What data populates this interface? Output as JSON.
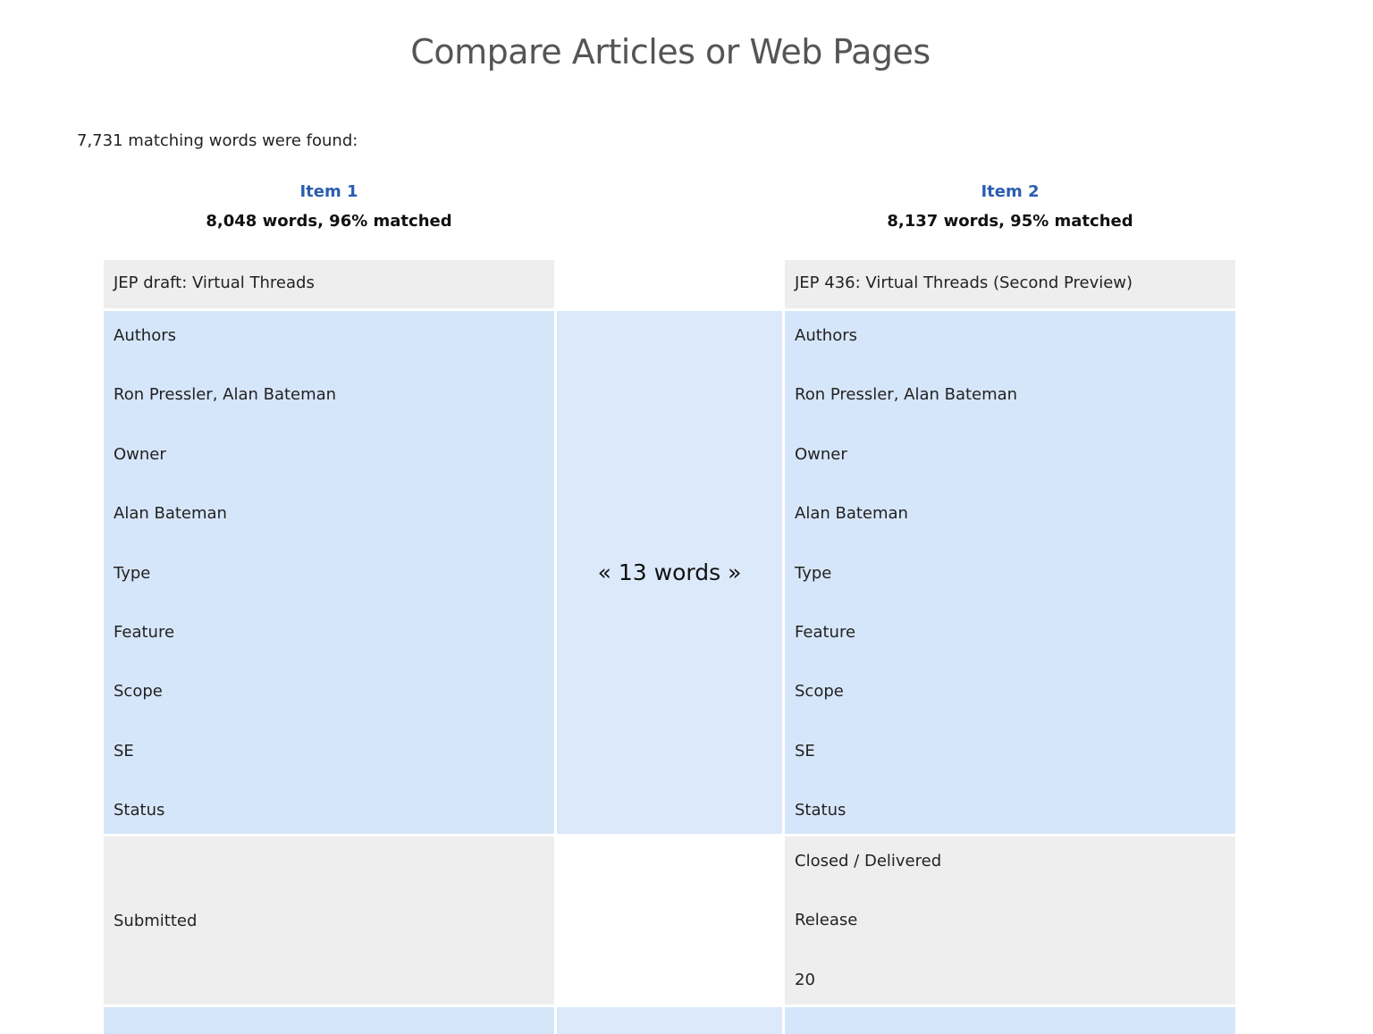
{
  "title": "Compare Articles or Web Pages",
  "summary": "7,731 matching words were found:",
  "items": [
    {
      "label": "Item 1",
      "stats": "8,048 words, 96% matched"
    },
    {
      "label": "Item 2",
      "stats": "8,137 words, 95% matched"
    }
  ],
  "rows": {
    "title_left": "JEP draft: Virtual Threads",
    "title_right": "JEP 436: Virtual Threads (Second Preview)",
    "matched_left": [
      "Authors",
      "Ron Pressler, Alan Bateman",
      "Owner",
      "Alan Bateman",
      "Type",
      "Feature",
      "Scope",
      "SE",
      "Status"
    ],
    "matched_right": [
      "Authors",
      "Ron Pressler, Alan Bateman",
      "Owner",
      "Alan Bateman",
      "Type",
      "Feature",
      "Scope",
      "SE",
      "Status"
    ],
    "match_count": "« 13 words »",
    "diff_left": [
      "Submitted"
    ],
    "diff_right": [
      "Closed / Delivered",
      "Release",
      "20"
    ]
  },
  "colors": {
    "item_label": "#2a5db0",
    "unmatched_bg": "#eeeeee",
    "matched_bg": "#d6e6fa"
  }
}
